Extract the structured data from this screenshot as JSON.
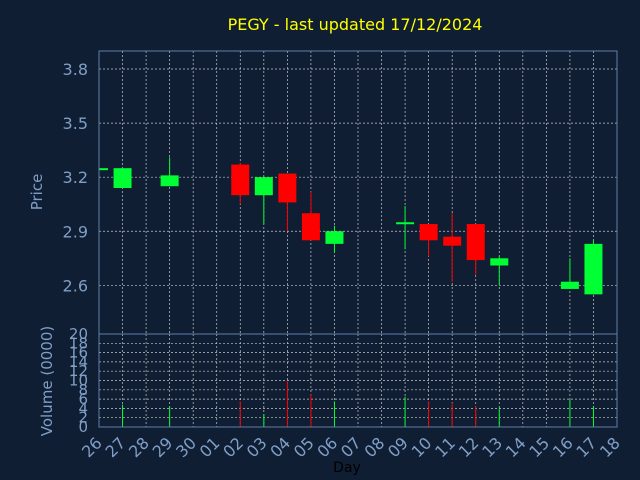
{
  "colors": {
    "background": "#0f1e33",
    "frame": "#5f7fa8",
    "grid": "#c8c8c8",
    "title": "#ffff00",
    "text": "#7f9fc7",
    "up": "#00ff33",
    "down": "#ff0000"
  },
  "chart_data": [
    {
      "type": "candlestick",
      "title": "PEGY - last updated 17/12/2024",
      "ylabel": "Price",
      "ylim": [
        2.33,
        3.9
      ],
      "yticks": [
        2.6,
        2.9,
        3.2,
        3.5,
        3.8
      ],
      "ytick_labels": [
        "2.6",
        "2.9",
        "3.2",
        "3.5",
        "3.8"
      ],
      "grid": true,
      "candles": [
        {
          "day": "26",
          "open": 3.24,
          "high": 3.25,
          "low": 3.24,
          "close": 3.25
        },
        {
          "day": "27",
          "open": 3.14,
          "high": 3.25,
          "low": 3.14,
          "close": 3.25
        },
        {
          "day": "29",
          "open": 3.15,
          "high": 3.31,
          "low": 3.15,
          "close": 3.21
        },
        {
          "day": "02",
          "open": 3.27,
          "high": 3.28,
          "low": 3.05,
          "close": 3.1
        },
        {
          "day": "03",
          "open": 3.1,
          "high": 3.2,
          "low": 2.94,
          "close": 3.2
        },
        {
          "day": "04",
          "open": 3.22,
          "high": 3.22,
          "low": 2.9,
          "close": 3.06
        },
        {
          "day": "05",
          "open": 3.0,
          "high": 3.12,
          "low": 2.85,
          "close": 2.85
        },
        {
          "day": "06",
          "open": 2.83,
          "high": 2.93,
          "low": 2.78,
          "close": 2.9
        },
        {
          "day": "09",
          "open": 2.94,
          "high": 3.04,
          "low": 2.8,
          "close": 2.95
        },
        {
          "day": "10",
          "open": 2.94,
          "high": 2.94,
          "low": 2.76,
          "close": 2.85
        },
        {
          "day": "11",
          "open": 2.87,
          "high": 3.0,
          "low": 2.62,
          "close": 2.82
        },
        {
          "day": "12",
          "open": 2.94,
          "high": 2.94,
          "low": 2.66,
          "close": 2.74
        },
        {
          "day": "13",
          "open": 2.71,
          "high": 2.76,
          "low": 2.6,
          "close": 2.75
        },
        {
          "day": "16",
          "open": 2.58,
          "high": 2.75,
          "low": 2.58,
          "close": 2.62
        },
        {
          "day": "17",
          "open": 2.55,
          "high": 2.85,
          "low": 2.55,
          "close": 2.83
        }
      ]
    },
    {
      "type": "bar",
      "ylabel": "Volume (0000)",
      "xlabel": "Day",
      "ylim": [
        0,
        20
      ],
      "yticks": [
        0,
        2,
        4,
        6,
        8,
        10,
        12,
        14,
        16,
        18,
        20
      ],
      "ytick_labels": [
        "0",
        "2",
        "4",
        "6",
        "8",
        "10",
        "12",
        "14",
        "16",
        "18",
        "20"
      ],
      "categories": [
        "26",
        "27",
        "28",
        "29",
        "30",
        "01",
        "02",
        "03",
        "04",
        "05",
        "06",
        "07",
        "08",
        "09",
        "10",
        "11",
        "12",
        "13",
        "14",
        "15",
        "16",
        "17",
        "18"
      ],
      "values": [
        0,
        4.8,
        0,
        4.5,
        0,
        0,
        5.5,
        2.8,
        9.8,
        7.0,
        5.5,
        0,
        0,
        6.5,
        5.5,
        5.2,
        4.5,
        4.0,
        0,
        0,
        6.0,
        4.5,
        0
      ],
      "bar_direction": [
        "none",
        "up",
        "none",
        "up",
        "none",
        "none",
        "down",
        "up",
        "down",
        "down",
        "up",
        "none",
        "none",
        "up",
        "down",
        "down",
        "down",
        "up",
        "none",
        "none",
        "up",
        "up",
        "none"
      ]
    }
  ]
}
